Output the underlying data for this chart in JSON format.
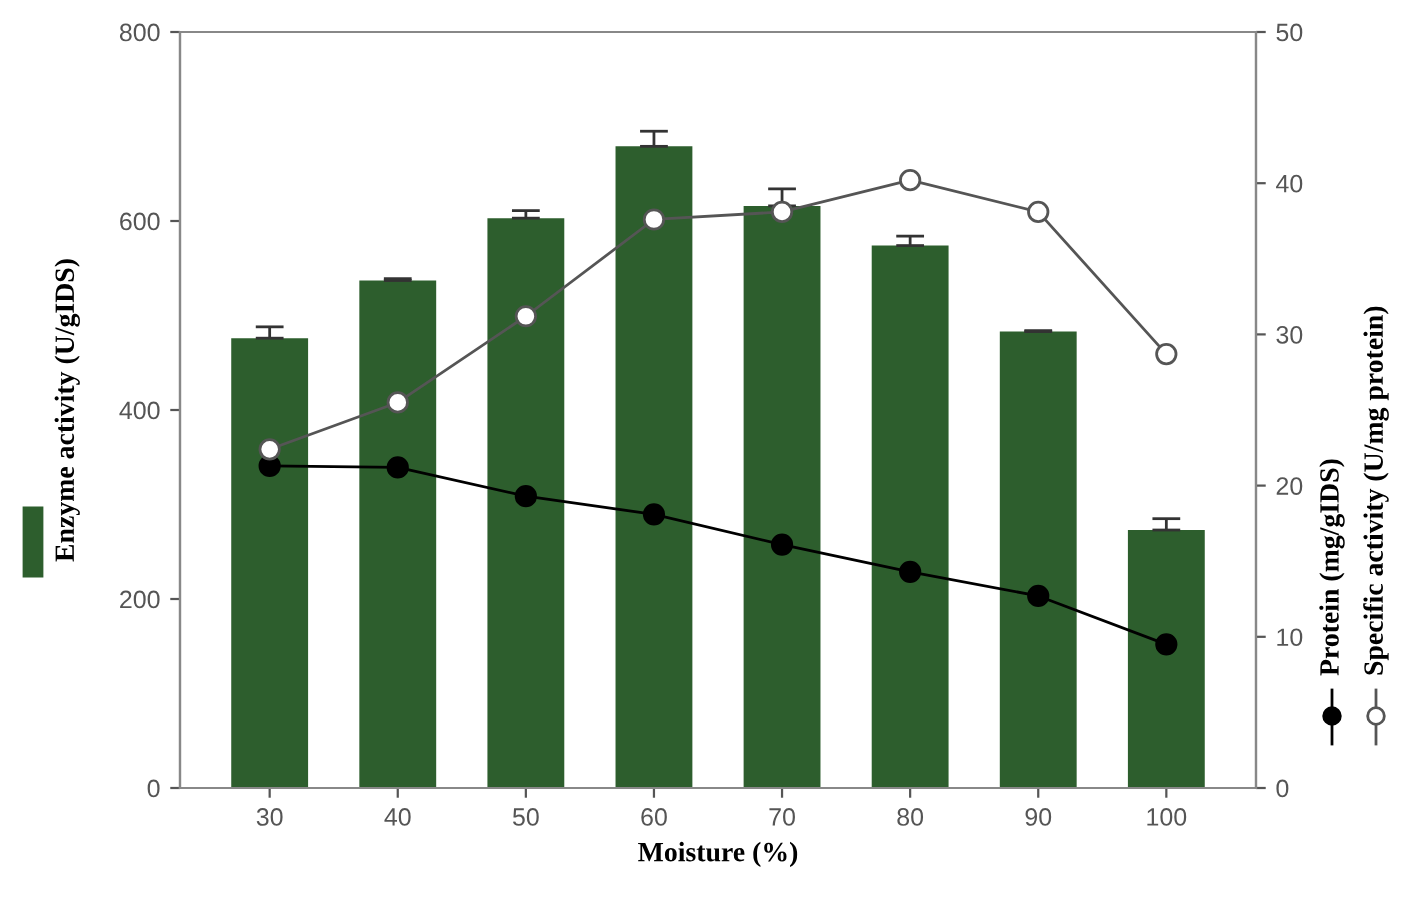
{
  "chart_data": {
    "type": "bar",
    "xlabel": "Moisture (%)",
    "ylabel": "Enzyme activity (U/gIDS)",
    "categories": [
      "30",
      "40",
      "50",
      "60",
      "70",
      "80",
      "90",
      "100"
    ],
    "series": [
      {
        "color": "#2d5e2d",
        "values": [
          476,
          537,
          603,
          679,
          616,
          574,
          483,
          273
        ],
        "errors": [
          12,
          2,
          8,
          16,
          18,
          10,
          1,
          12
        ]
      },
      {
        "type": "line",
        "name": "Protein (mg/gIDS)",
        "axis": "y2",
        "color": "#000000",
        "marker": "circle",
        "values": [
          21.3,
          21.2,
          19.3,
          18.1,
          16.1,
          14.3,
          12.7,
          9.5
        ]
      },
      {
        "type": "line",
        "name": "Specific activity (U/mg protein)",
        "axis": "y2",
        "color": "#555555",
        "marker": "circle",
        "values": [
          22.4,
          25.5,
          31.2,
          37.6,
          38.1,
          40.2,
          38.1,
          28.7
        ]
      }
    ],
    "ylim": [
      0,
      800
    ],
    "yticks": [
      0,
      200,
      400,
      600,
      800
    ],
    "y2lim": [
      0,
      50
    ],
    "y2ticks": [
      0,
      10,
      20,
      30,
      40,
      50
    ],
    "grid": false,
    "legend": "right"
  }
}
